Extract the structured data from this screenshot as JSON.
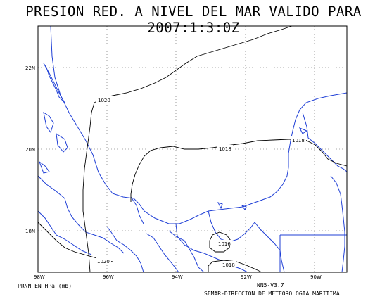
{
  "title": "PRESION RED. A NIVEL DEL MAR VALIDO PARA 2007:1:3:0Z",
  "axes": {
    "lon_labels": [
      "98W",
      "96W",
      "94W",
      "92W",
      "90W"
    ],
    "lat_labels": [
      "22N",
      "20N",
      "18N"
    ]
  },
  "isobars": [
    {
      "label": "1020"
    },
    {
      "label": "1018"
    },
    {
      "label": "1018"
    },
    {
      "label": "1016"
    },
    {
      "label": "1018"
    },
    {
      "label": "1020"
    }
  ],
  "footer": {
    "units": "PRNN EN HPa (mb)",
    "version": "NN5-V3.7",
    "organization": "SEMAR-DIRECCION DE METEOROLOGIA MARITIMA"
  },
  "colors": {
    "coastline": "#1f3fd6",
    "isobar": "#000000",
    "grid": "#555555",
    "frame": "#000000"
  }
}
